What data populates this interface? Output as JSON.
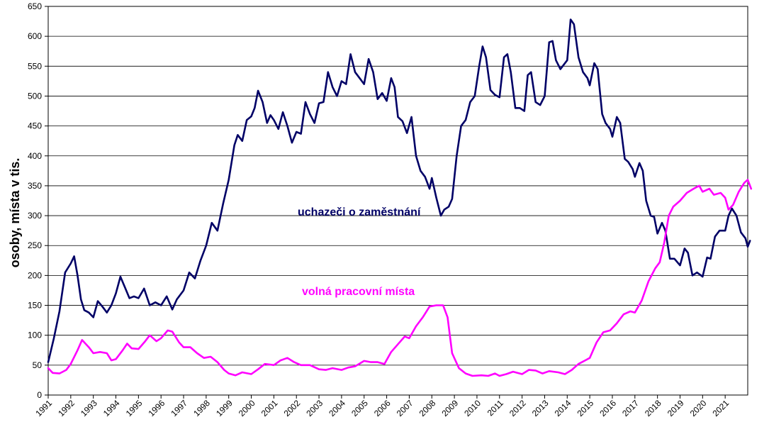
{
  "chart_data": {
    "type": "line",
    "ylabel": "osoby, místa v tis.",
    "xlabel": "",
    "title": "",
    "ylim": [
      0,
      650
    ],
    "yticks": [
      0,
      50,
      100,
      150,
      200,
      250,
      300,
      350,
      400,
      450,
      500,
      550,
      600,
      650
    ],
    "xlim": [
      1991,
      2022
    ],
    "xticks": [
      "1991",
      "1992",
      "1993",
      "1994",
      "1995",
      "1996",
      "1997",
      "1998",
      "1999",
      "2000",
      "2001",
      "2002",
      "2003",
      "2004",
      "2005",
      "2006",
      "2007",
      "2008",
      "2009",
      "2010",
      "2011",
      "2012",
      "2013",
      "2014",
      "2015",
      "2016",
      "2017",
      "2018",
      "2019",
      "2020",
      "2021"
    ],
    "grid": "horizontal",
    "series": [
      {
        "name": "uchazeči o zaměstnání",
        "color": "#000066",
        "points": [
          [
            1991.0,
            55
          ],
          [
            1991.25,
            95
          ],
          [
            1991.5,
            140
          ],
          [
            1991.75,
            205
          ],
          [
            1992.0,
            220
          ],
          [
            1992.15,
            232
          ],
          [
            1992.3,
            200
          ],
          [
            1992.45,
            160
          ],
          [
            1992.6,
            142
          ],
          [
            1992.8,
            138
          ],
          [
            1993.0,
            130
          ],
          [
            1993.2,
            157
          ],
          [
            1993.4,
            148
          ],
          [
            1993.6,
            138
          ],
          [
            1993.8,
            150
          ],
          [
            1994.0,
            170
          ],
          [
            1994.2,
            198
          ],
          [
            1994.4,
            180
          ],
          [
            1994.6,
            162
          ],
          [
            1994.8,
            165
          ],
          [
            1995.0,
            162
          ],
          [
            1995.25,
            178
          ],
          [
            1995.5,
            150
          ],
          [
            1995.75,
            155
          ],
          [
            1996.0,
            150
          ],
          [
            1996.25,
            165
          ],
          [
            1996.5,
            143
          ],
          [
            1996.7,
            160
          ],
          [
            1997.0,
            175
          ],
          [
            1997.25,
            205
          ],
          [
            1997.5,
            195
          ],
          [
            1997.75,
            225
          ],
          [
            1998.0,
            250
          ],
          [
            1998.25,
            288
          ],
          [
            1998.5,
            275
          ],
          [
            1998.75,
            320
          ],
          [
            1999.0,
            360
          ],
          [
            1999.25,
            418
          ],
          [
            1999.4,
            435
          ],
          [
            1999.6,
            425
          ],
          [
            1999.8,
            460
          ],
          [
            2000.0,
            466
          ],
          [
            2000.15,
            480
          ],
          [
            2000.3,
            509
          ],
          [
            2000.5,
            490
          ],
          [
            2000.7,
            455
          ],
          [
            2000.85,
            468
          ],
          [
            2001.0,
            460
          ],
          [
            2001.2,
            445
          ],
          [
            2001.4,
            473
          ],
          [
            2001.6,
            450
          ],
          [
            2001.8,
            422
          ],
          [
            2002.0,
            440
          ],
          [
            2002.2,
            437
          ],
          [
            2002.4,
            490
          ],
          [
            2002.6,
            470
          ],
          [
            2002.8,
            455
          ],
          [
            2003.0,
            488
          ],
          [
            2003.2,
            490
          ],
          [
            2003.4,
            540
          ],
          [
            2003.6,
            515
          ],
          [
            2003.8,
            500
          ],
          [
            2004.0,
            525
          ],
          [
            2004.2,
            520
          ],
          [
            2004.4,
            570
          ],
          [
            2004.6,
            540
          ],
          [
            2004.8,
            530
          ],
          [
            2005.0,
            520
          ],
          [
            2005.2,
            562
          ],
          [
            2005.4,
            540
          ],
          [
            2005.6,
            495
          ],
          [
            2005.8,
            505
          ],
          [
            2006.0,
            492
          ],
          [
            2006.2,
            530
          ],
          [
            2006.35,
            515
          ],
          [
            2006.5,
            465
          ],
          [
            2006.7,
            458
          ],
          [
            2006.9,
            438
          ],
          [
            2007.1,
            465
          ],
          [
            2007.3,
            400
          ],
          [
            2007.5,
            375
          ],
          [
            2007.7,
            365
          ],
          [
            2007.9,
            345
          ],
          [
            2008.0,
            363
          ],
          [
            2008.2,
            330
          ],
          [
            2008.4,
            300
          ],
          [
            2008.55,
            310
          ],
          [
            2008.75,
            315
          ],
          [
            2008.9,
            328
          ],
          [
            2009.1,
            400
          ],
          [
            2009.3,
            450
          ],
          [
            2009.5,
            460
          ],
          [
            2009.7,
            490
          ],
          [
            2009.9,
            500
          ],
          [
            2010.1,
            550
          ],
          [
            2010.25,
            583
          ],
          [
            2010.4,
            565
          ],
          [
            2010.6,
            510
          ],
          [
            2010.8,
            502
          ],
          [
            2011.0,
            498
          ],
          [
            2011.2,
            565
          ],
          [
            2011.35,
            570
          ],
          [
            2011.5,
            540
          ],
          [
            2011.7,
            480
          ],
          [
            2011.9,
            480
          ],
          [
            2012.1,
            475
          ],
          [
            2012.25,
            535
          ],
          [
            2012.4,
            540
          ],
          [
            2012.6,
            490
          ],
          [
            2012.8,
            485
          ],
          [
            2013.0,
            500
          ],
          [
            2013.2,
            590
          ],
          [
            2013.35,
            592
          ],
          [
            2013.5,
            560
          ],
          [
            2013.7,
            545
          ],
          [
            2013.9,
            555
          ],
          [
            2014.0,
            560
          ],
          [
            2014.15,
            628
          ],
          [
            2014.3,
            620
          ],
          [
            2014.5,
            565
          ],
          [
            2014.7,
            540
          ],
          [
            2014.9,
            530
          ],
          [
            2015.0,
            518
          ],
          [
            2015.2,
            555
          ],
          [
            2015.35,
            545
          ],
          [
            2015.55,
            470
          ],
          [
            2015.7,
            455
          ],
          [
            2015.9,
            445
          ],
          [
            2016.0,
            432
          ],
          [
            2016.2,
            465
          ],
          [
            2016.35,
            455
          ],
          [
            2016.55,
            395
          ],
          [
            2016.7,
            390
          ],
          [
            2016.9,
            378
          ],
          [
            2017.0,
            365
          ],
          [
            2017.2,
            388
          ],
          [
            2017.35,
            375
          ],
          [
            2017.5,
            325
          ],
          [
            2017.7,
            300
          ],
          [
            2017.85,
            298
          ],
          [
            2018.0,
            270
          ],
          [
            2018.2,
            288
          ],
          [
            2018.35,
            275
          ],
          [
            2018.55,
            228
          ],
          [
            2018.75,
            228
          ],
          [
            2019.0,
            217
          ],
          [
            2019.2,
            245
          ],
          [
            2019.35,
            238
          ],
          [
            2019.55,
            200
          ],
          [
            2019.75,
            205
          ],
          [
            2020.0,
            198
          ],
          [
            2020.2,
            230
          ],
          [
            2020.35,
            228
          ],
          [
            2020.55,
            265
          ],
          [
            2020.75,
            275
          ],
          [
            2021.0,
            275
          ],
          [
            2021.15,
            300
          ],
          [
            2021.3,
            312
          ],
          [
            2021.5,
            300
          ],
          [
            2021.7,
            272
          ],
          [
            2021.9,
            262
          ],
          [
            2022.0,
            248
          ],
          [
            2022.1,
            258
          ]
        ]
      },
      {
        "name": "volná pracovní místa",
        "color": "#ff00ff",
        "points": [
          [
            1991.0,
            45
          ],
          [
            1991.2,
            37
          ],
          [
            1991.5,
            36
          ],
          [
            1991.8,
            42
          ],
          [
            1992.0,
            52
          ],
          [
            1992.3,
            75
          ],
          [
            1992.5,
            92
          ],
          [
            1992.8,
            80
          ],
          [
            1993.0,
            70
          ],
          [
            1993.3,
            72
          ],
          [
            1993.6,
            70
          ],
          [
            1993.8,
            58
          ],
          [
            1994.0,
            60
          ],
          [
            1994.3,
            75
          ],
          [
            1994.5,
            86
          ],
          [
            1994.7,
            78
          ],
          [
            1995.0,
            77
          ],
          [
            1995.3,
            90
          ],
          [
            1995.5,
            100
          ],
          [
            1995.8,
            90
          ],
          [
            1996.0,
            95
          ],
          [
            1996.3,
            108
          ],
          [
            1996.5,
            106
          ],
          [
            1996.8,
            88
          ],
          [
            1997.0,
            80
          ],
          [
            1997.3,
            80
          ],
          [
            1997.6,
            70
          ],
          [
            1997.9,
            62
          ],
          [
            1998.2,
            64
          ],
          [
            1998.5,
            55
          ],
          [
            1998.8,
            42
          ],
          [
            1999.0,
            36
          ],
          [
            1999.3,
            33
          ],
          [
            1999.6,
            38
          ],
          [
            2000.0,
            35
          ],
          [
            2000.3,
            43
          ],
          [
            2000.6,
            52
          ],
          [
            2001.0,
            50
          ],
          [
            2001.3,
            58
          ],
          [
            2001.6,
            62
          ],
          [
            2001.9,
            55
          ],
          [
            2002.2,
            50
          ],
          [
            2002.6,
            50
          ],
          [
            2003.0,
            43
          ],
          [
            2003.3,
            42
          ],
          [
            2003.6,
            45
          ],
          [
            2004.0,
            42
          ],
          [
            2004.3,
            46
          ],
          [
            2004.6,
            48
          ],
          [
            2005.0,
            57
          ],
          [
            2005.3,
            55
          ],
          [
            2005.6,
            55
          ],
          [
            2005.9,
            52
          ],
          [
            2006.2,
            72
          ],
          [
            2006.5,
            85
          ],
          [
            2006.8,
            98
          ],
          [
            2007.0,
            95
          ],
          [
            2007.3,
            115
          ],
          [
            2007.6,
            130
          ],
          [
            2007.9,
            148
          ],
          [
            2008.2,
            150
          ],
          [
            2008.5,
            150
          ],
          [
            2008.7,
            130
          ],
          [
            2008.9,
            70
          ],
          [
            2009.2,
            45
          ],
          [
            2009.5,
            36
          ],
          [
            2009.8,
            32
          ],
          [
            2010.2,
            33
          ],
          [
            2010.5,
            32
          ],
          [
            2010.8,
            36
          ],
          [
            2011.0,
            32
          ],
          [
            2011.3,
            35
          ],
          [
            2011.6,
            39
          ],
          [
            2012.0,
            35
          ],
          [
            2012.3,
            42
          ],
          [
            2012.6,
            41
          ],
          [
            2012.9,
            36
          ],
          [
            2013.2,
            40
          ],
          [
            2013.6,
            38
          ],
          [
            2013.9,
            35
          ],
          [
            2014.2,
            42
          ],
          [
            2014.5,
            52
          ],
          [
            2014.8,
            58
          ],
          [
            2015.0,
            62
          ],
          [
            2015.3,
            88
          ],
          [
            2015.6,
            105
          ],
          [
            2015.9,
            108
          ],
          [
            2016.2,
            120
          ],
          [
            2016.5,
            135
          ],
          [
            2016.8,
            140
          ],
          [
            2017.0,
            138
          ],
          [
            2017.3,
            158
          ],
          [
            2017.6,
            190
          ],
          [
            2017.9,
            212
          ],
          [
            2018.1,
            222
          ],
          [
            2018.3,
            255
          ],
          [
            2018.5,
            300
          ],
          [
            2018.7,
            315
          ],
          [
            2019.0,
            325
          ],
          [
            2019.3,
            338
          ],
          [
            2019.6,
            345
          ],
          [
            2019.85,
            350
          ],
          [
            2020.0,
            340
          ],
          [
            2020.3,
            345
          ],
          [
            2020.5,
            335
          ],
          [
            2020.8,
            338
          ],
          [
            2021.0,
            330
          ],
          [
            2021.15,
            310
          ],
          [
            2021.35,
            318
          ],
          [
            2021.6,
            340
          ],
          [
            2021.85,
            355
          ],
          [
            2022.0,
            360
          ],
          [
            2022.15,
            345
          ]
        ]
      }
    ],
    "annotations": [
      {
        "text": "uchazeči o zaměstnání",
        "color": "#000066"
      },
      {
        "text": "volná pracovní místa",
        "color": "#ff00ff"
      }
    ]
  }
}
